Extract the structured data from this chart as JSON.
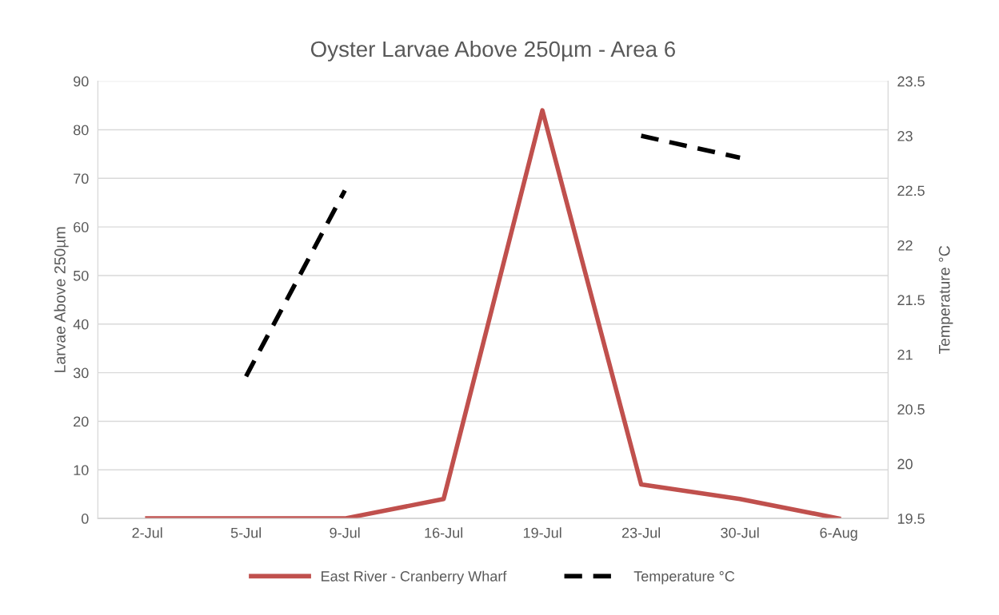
{
  "chart_data": {
    "type": "line",
    "title": "Oyster Larvae Above 250µm - Area 6",
    "ylabel": "Larvae Above 250µm",
    "y2label": "Temperature °C",
    "categories": [
      "2-Jul",
      "5-Jul",
      "9-Jul",
      "16-Jul",
      "19-Jul",
      "23-Jul",
      "30-Jul",
      "6-Aug"
    ],
    "series": [
      {
        "name": "East River - Cranberry Wharf",
        "color": "#c0504d",
        "line_style": "solid",
        "values": [
          0,
          0,
          0,
          4,
          84,
          7,
          4,
          0
        ]
      },
      {
        "name": "Temperature °C",
        "color": "#000000",
        "line_style": "dashed",
        "axis": "y2",
        "values": [
          null,
          20.8,
          22.5,
          null,
          null,
          23.0,
          22.8,
          null
        ]
      }
    ],
    "ylim": [
      0,
      90
    ],
    "yticks": [
      0,
      10,
      20,
      30,
      40,
      50,
      60,
      70,
      80,
      90
    ],
    "y2lim": [
      19.5,
      23.5
    ],
    "y2ticks": [
      {
        "value": 19.5,
        "label": "19.5"
      },
      {
        "value": 20,
        "label": "20"
      },
      {
        "value": 20.5,
        "label": "20.5"
      },
      {
        "value": 21,
        "label": "21"
      },
      {
        "value": 21.5,
        "label": "21.5"
      },
      {
        "value": 22,
        "label": "22"
      },
      {
        "value": 22.5,
        "label": "22.5"
      },
      {
        "value": 23,
        "label": "23"
      },
      {
        "value": 23.5,
        "label": "23.5"
      }
    ],
    "grid": "y",
    "legend": "bottom",
    "marker": "none"
  }
}
